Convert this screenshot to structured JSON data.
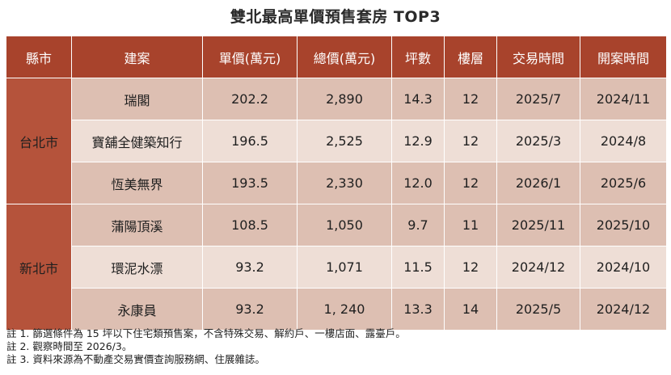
{
  "title": "雙北最高單價預售套房 TOP3",
  "headers": [
    "縣市",
    "建案",
    "單價(萬元)",
    "總價(萬元)",
    "坪數",
    "樓層",
    "交易時間",
    "開案時間"
  ],
  "regions": [
    {
      "name": "台北市",
      "rows": [
        {
          "project": "瑞閣",
          "unit_price": "202.2",
          "total_price": "2,890",
          "ping": "14.3",
          "floor": "12",
          "trade_time": "2025/7",
          "launch_time": "2024/11"
        },
        {
          "project": "寶舖全健築知行",
          "unit_price": "196.5",
          "total_price": "2,525",
          "ping": "12.9",
          "floor": "12",
          "trade_time": "2025/3",
          "launch_time": "2024/8"
        },
        {
          "project": "恆美無界",
          "unit_price": "193.5",
          "total_price": "2,330",
          "ping": "12.0",
          "floor": "12",
          "trade_time": "2026/1",
          "launch_time": "2025/6"
        }
      ]
    },
    {
      "name": "新北市",
      "rows": [
        {
          "project": "蒲陽頂溪",
          "unit_price": "108.5",
          "total_price": "1,050",
          "ping": "9.7",
          "floor": "11",
          "trade_time": "2025/11",
          "launch_time": "2025/10"
        },
        {
          "project": "環泥水漂",
          "unit_price": "93.2",
          "total_price": "1,071",
          "ping": "11.5",
          "floor": "12",
          "trade_time": "2024/12",
          "launch_time": "2024/10"
        },
        {
          "project": "永康員",
          "unit_price": "93.2",
          "total_price": "1, 240",
          "ping": "13.3",
          "floor": "14",
          "trade_time": "2025/5",
          "launch_time": "2024/12"
        }
      ]
    }
  ],
  "notes": [
    "註 1. 篩選條件為 15 坪以下住宅類預售案，不含特殊交易、解約戶、一樓店面、露臺戶。",
    "註 2. 觀察時間至 2026/3。",
    "註 3. 資料來源為不動產交易實價查詢服務網、住展雜誌。"
  ],
  "colors": {
    "header_bg": "#a8432c",
    "region_bg": "#b5533b",
    "row_shade": "#ddbfb2",
    "row_light": "#eeded6"
  }
}
